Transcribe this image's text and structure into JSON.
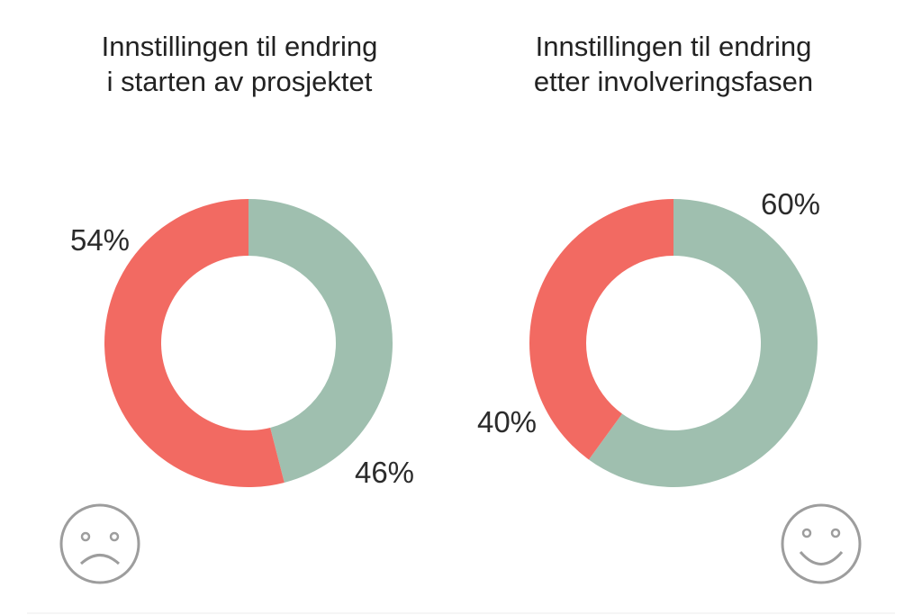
{
  "colors": {
    "positive": "#9fbfaf",
    "negative": "#f26a62",
    "text": "#222222",
    "face": "#9d9d9d"
  },
  "chart_data": [
    {
      "type": "pie",
      "variant": "donut",
      "title_lines": [
        "Innstillingen til endring",
        "i starten av prosjektet"
      ],
      "slices": [
        {
          "label": "46%",
          "value": 46,
          "color": "#9fbfaf"
        },
        {
          "label": "54%",
          "value": 54,
          "color": "#f26a62"
        }
      ],
      "icon": "sad-face-icon"
    },
    {
      "type": "pie",
      "variant": "donut",
      "title_lines": [
        "Innstillingen til endring",
        "etter involveringsfasen"
      ],
      "slices": [
        {
          "label": "60%",
          "value": 60,
          "color": "#9fbfaf"
        },
        {
          "label": "40%",
          "value": 40,
          "color": "#f26a62"
        }
      ],
      "icon": "happy-face-icon"
    }
  ]
}
